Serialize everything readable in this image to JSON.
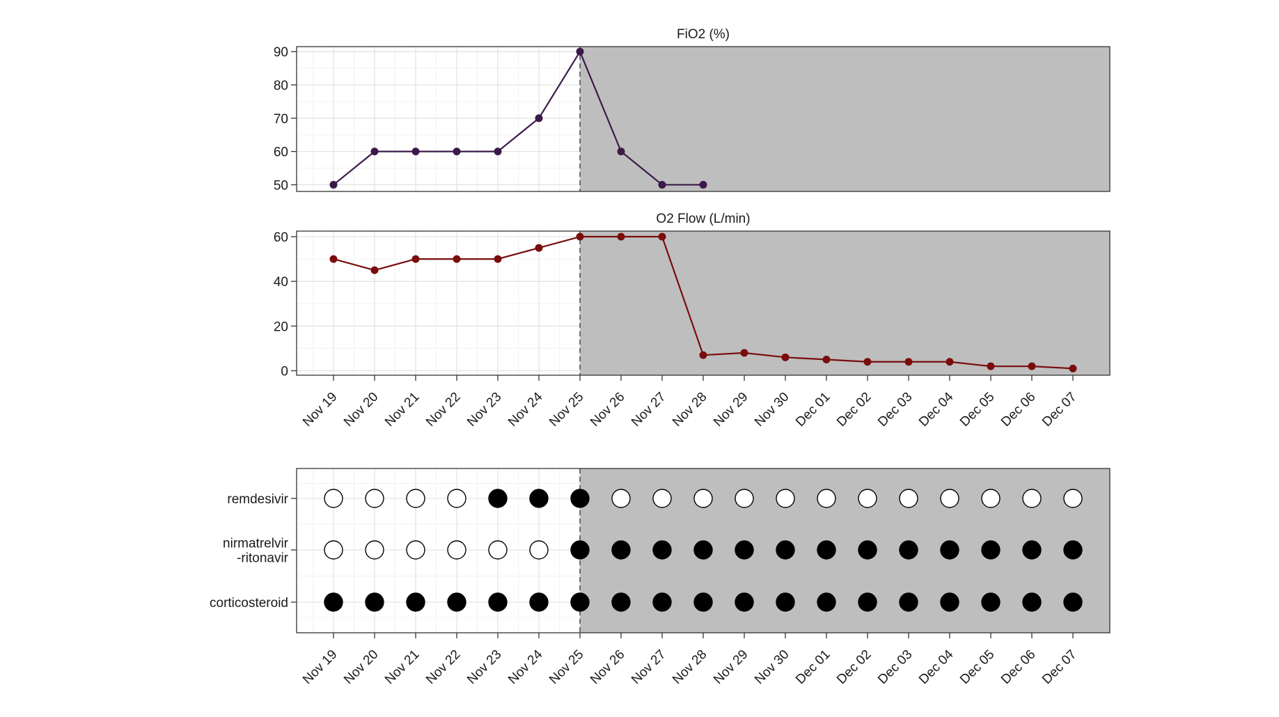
{
  "colors": {
    "background": "#ffffff",
    "shade": "#bebebe",
    "grid_major": "#e3e3e3",
    "grid_minor": "#f2f2f2",
    "axis": "#333333",
    "fio2_series": "#3b1a4a",
    "o2flow_series": "#7a0c0c",
    "marker_on": "#000000",
    "marker_off": "#ffffff"
  },
  "dates": [
    "Nov 19",
    "Nov 20",
    "Nov 21",
    "Nov 22",
    "Nov 23",
    "Nov 24",
    "Nov 25",
    "Nov 26",
    "Nov 27",
    "Nov 28",
    "Nov 29",
    "Nov 30",
    "Dec 01",
    "Dec 02",
    "Dec 03",
    "Dec 04",
    "Dec 05",
    "Dec 06",
    "Dec 07"
  ],
  "chart_data": [
    {
      "type": "line",
      "title": "FiO2 (%)",
      "xlabel": "",
      "ylabel": "",
      "x": [
        "Nov 19",
        "Nov 20",
        "Nov 21",
        "Nov 22",
        "Nov 23",
        "Nov 24",
        "Nov 25",
        "Nov 26",
        "Nov 27",
        "Nov 28"
      ],
      "series": [
        {
          "values": [
            50,
            60,
            60,
            60,
            60,
            70,
            90,
            60,
            50,
            50
          ]
        }
      ],
      "ylim": [
        48,
        91.5
      ],
      "yticks": [
        50,
        60,
        70,
        80,
        90
      ],
      "marker_line_at": "Nov 25",
      "shaded_from": "Nov 25",
      "grid": true
    },
    {
      "type": "line",
      "title": "O2 Flow (L/min)",
      "xlabel": "",
      "ylabel": "",
      "x": [
        "Nov 19",
        "Nov 20",
        "Nov 21",
        "Nov 22",
        "Nov 23",
        "Nov 24",
        "Nov 25",
        "Nov 26",
        "Nov 27",
        "Nov 28",
        "Nov 29",
        "Nov 30",
        "Dec 01",
        "Dec 02",
        "Dec 03",
        "Dec 04",
        "Dec 05",
        "Dec 06",
        "Dec 07"
      ],
      "series": [
        {
          "values": [
            50,
            45,
            50,
            50,
            50,
            55,
            60,
            60,
            60,
            7,
            8,
            6,
            5,
            4,
            4,
            4,
            2,
            2,
            1
          ]
        }
      ],
      "ylim": [
        -2,
        62.5
      ],
      "yticks": [
        0,
        20,
        40,
        60
      ],
      "marker_line_at": "Nov 25",
      "shaded_from": "Nov 25",
      "grid": true
    },
    {
      "type": "scatter",
      "title": "",
      "xlabel": "",
      "ylabel": "",
      "x": [
        "Nov 19",
        "Nov 20",
        "Nov 21",
        "Nov 22",
        "Nov 23",
        "Nov 24",
        "Nov 25",
        "Nov 26",
        "Nov 27",
        "Nov 28",
        "Nov 29",
        "Nov 30",
        "Dec 01",
        "Dec 02",
        "Dec 03",
        "Dec 04",
        "Dec 05",
        "Dec 06",
        "Dec 07"
      ],
      "series": [
        {
          "name": "remdesivir",
          "label_lines": [
            "remdesivir"
          ],
          "values": [
            0,
            0,
            0,
            0,
            1,
            1,
            1,
            0,
            0,
            0,
            0,
            0,
            0,
            0,
            0,
            0,
            0,
            0,
            0
          ]
        },
        {
          "name": "nirmatrelvir-ritonavir",
          "label_lines": [
            "nirmatrelvir",
            "-ritonavir"
          ],
          "values": [
            0,
            0,
            0,
            0,
            0,
            0,
            1,
            1,
            1,
            1,
            1,
            1,
            1,
            1,
            1,
            1,
            1,
            1,
            1
          ]
        },
        {
          "name": "corticosteroid",
          "label_lines": [
            "corticosteroid"
          ],
          "values": [
            1,
            1,
            1,
            1,
            1,
            1,
            1,
            1,
            1,
            1,
            1,
            1,
            1,
            1,
            1,
            1,
            1,
            1,
            1
          ]
        }
      ],
      "value_meaning": "1 = filled circle, 0 = open circle",
      "marker_line_at": "Nov 25",
      "shaded_from": "Nov 25",
      "grid": true
    }
  ]
}
